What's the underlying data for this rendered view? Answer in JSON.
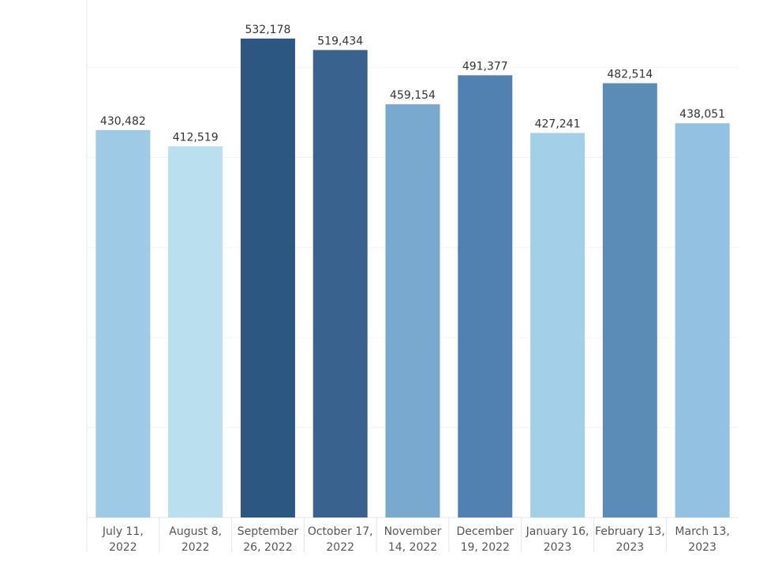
{
  "chart_data": {
    "type": "bar",
    "title": "",
    "xlabel": "",
    "ylabel": "",
    "ylim": [
      0,
      575000
    ],
    "grid": true,
    "categories": [
      [
        "July 11,",
        "2022"
      ],
      [
        "August 8,",
        "2022"
      ],
      [
        "September",
        "26, 2022"
      ],
      [
        "October 17,",
        "2022"
      ],
      [
        "November",
        "14, 2022"
      ],
      [
        "December",
        "19, 2022"
      ],
      [
        "January 16,",
        "2023"
      ],
      [
        "February 13,",
        "2023"
      ],
      [
        "March 13,",
        "2023"
      ]
    ],
    "values": [
      430482,
      412519,
      532178,
      519434,
      459154,
      491377,
      427241,
      482514,
      438051
    ],
    "value_labels": [
      "430,482",
      "412,519",
      "532,178",
      "519,434",
      "459,154",
      "491,377",
      "427,241",
      "482,514",
      "438,051"
    ],
    "colors": [
      "#9ecae6",
      "#badfef",
      "#2c5781",
      "#39628f",
      "#79a9cf",
      "#5181b0",
      "#a3cfe8",
      "#5b8cb8",
      "#93c1e2"
    ]
  }
}
